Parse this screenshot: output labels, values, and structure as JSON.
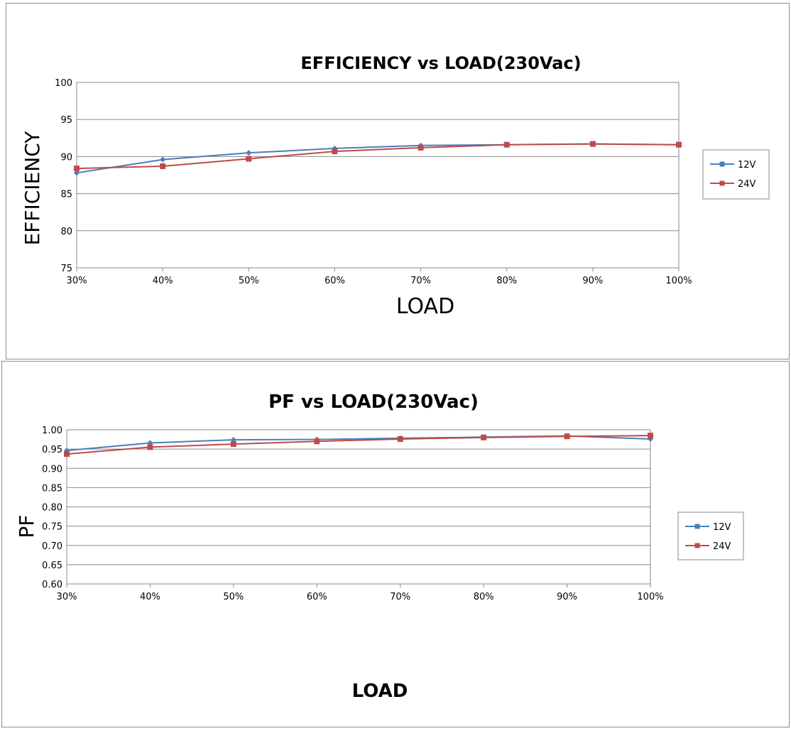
{
  "chart_data": [
    {
      "type": "line",
      "title": "EFFICIENCY vs LOAD(230Vac)",
      "xlabel": "LOAD",
      "ylabel": "EFFICIENCY",
      "categories": [
        "30%",
        "40%",
        "50%",
        "60%",
        "70%",
        "80%",
        "90%",
        "100%"
      ],
      "ylim": [
        75,
        100
      ],
      "yticks": [
        "75",
        "80",
        "85",
        "90",
        "95",
        "100"
      ],
      "grid": true,
      "legend": "right",
      "series": [
        {
          "name": "12V",
          "color": "#4a7ebb",
          "marker": "diamond",
          "values": [
            87.8,
            89.6,
            90.5,
            91.1,
            91.5,
            91.6,
            91.7,
            91.6
          ]
        },
        {
          "name": "24V",
          "color": "#be4b48",
          "marker": "square",
          "values": [
            88.4,
            88.7,
            89.7,
            90.7,
            91.2,
            91.6,
            91.7,
            91.6
          ]
        }
      ]
    },
    {
      "type": "line",
      "title": "PF vs LOAD(230Vac)",
      "xlabel": "LOAD",
      "ylabel": "PF",
      "categories": [
        "30%",
        "40%",
        "50%",
        "60%",
        "70%",
        "80%",
        "90%",
        "100%"
      ],
      "ylim": [
        0.6,
        1.0
      ],
      "yticks": [
        "0.60",
        "0.65",
        "0.70",
        "0.75",
        "0.80",
        "0.85",
        "0.90",
        "0.95",
        "1.00"
      ],
      "grid": true,
      "legend": "right",
      "series": [
        {
          "name": "12V",
          "color": "#4a7ebb",
          "marker": "diamond",
          "values": [
            0.946,
            0.966,
            0.974,
            0.975,
            0.978,
            0.981,
            0.984,
            0.976
          ]
        },
        {
          "name": "24V",
          "color": "#be4b48",
          "marker": "square",
          "values": [
            0.937,
            0.955,
            0.963,
            0.97,
            0.976,
            0.98,
            0.983,
            0.985
          ]
        }
      ]
    }
  ]
}
